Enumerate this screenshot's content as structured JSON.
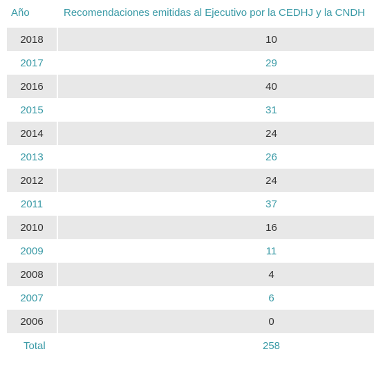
{
  "chart_data": {
    "type": "table",
    "columns": [
      "Año",
      "Recomendaciones emitidas al Ejecutivo por la CEDHJ y la CNDH"
    ],
    "rows": [
      {
        "year": "2018",
        "value": "10"
      },
      {
        "year": "2017",
        "value": "29"
      },
      {
        "year": "2016",
        "value": "40"
      },
      {
        "year": "2015",
        "value": "31"
      },
      {
        "year": "2014",
        "value": "24"
      },
      {
        "year": "2013",
        "value": "26"
      },
      {
        "year": "2012",
        "value": "24"
      },
      {
        "year": "2011",
        "value": "37"
      },
      {
        "year": "2010",
        "value": "16"
      },
      {
        "year": "2009",
        "value": "11"
      },
      {
        "year": "2008",
        "value": "4"
      },
      {
        "year": "2007",
        "value": "6"
      },
      {
        "year": "2006",
        "value": "0"
      }
    ],
    "total": {
      "label": "Total",
      "value": "258"
    }
  },
  "colors": {
    "accent": "#3a9aa6",
    "shade": "#e8e8e8",
    "dark_text": "#333333"
  }
}
